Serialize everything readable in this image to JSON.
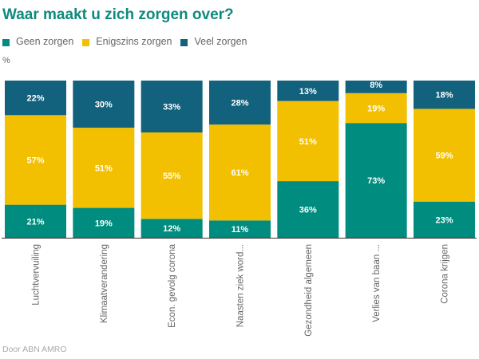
{
  "chart_data": {
    "type": "bar",
    "stacked": true,
    "percent_stacked": true,
    "title": "Waar maakt u zich zorgen over?",
    "unit_label": "%",
    "xlabel": "",
    "ylabel": "%",
    "ylim": [
      0,
      100
    ],
    "grid": false,
    "legend_position": "top-left",
    "categories": [
      "Luchtvervuiling",
      "Klimaatverandering",
      "Econ. gevolg corona",
      "Naasten ziek word...",
      "Gezondheid algemeen",
      "Verlies van baan ...",
      "Corona krijgen"
    ],
    "series": [
      {
        "name": "Geen zorgen",
        "color": "#008c7e",
        "values": [
          21,
          19,
          12,
          11,
          36,
          73,
          23
        ]
      },
      {
        "name": "Enigszins zorgen",
        "color": "#f2c000",
        "values": [
          57,
          51,
          55,
          61,
          51,
          19,
          59
        ]
      },
      {
        "name": "Veel zorgen",
        "color": "#12617d",
        "values": [
          22,
          30,
          33,
          28,
          13,
          8,
          18
        ]
      }
    ],
    "value_label_suffix": "%",
    "source": "Door ABN AMRO"
  }
}
